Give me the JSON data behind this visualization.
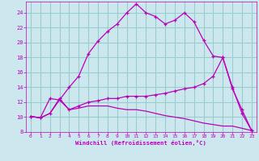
{
  "xlabel": "Windchill (Refroidissement éolien,°C)",
  "bg_color": "#cce8ee",
  "line_color": "#bb00bb",
  "grid_color": "#99cccc",
  "xlim": [
    -0.5,
    23.5
  ],
  "ylim": [
    8,
    25.5
  ],
  "xticks": [
    0,
    1,
    2,
    3,
    4,
    5,
    6,
    7,
    8,
    9,
    10,
    11,
    12,
    13,
    14,
    15,
    16,
    17,
    18,
    19,
    20,
    21,
    22,
    23
  ],
  "yticks": [
    8,
    10,
    12,
    14,
    16,
    18,
    20,
    22,
    24
  ],
  "line1_x": [
    0,
    1,
    2,
    3,
    4,
    5,
    6,
    7,
    8,
    9,
    10,
    11,
    12,
    13,
    14,
    15,
    16,
    17,
    18,
    19,
    20,
    21,
    22,
    23
  ],
  "line1_y": [
    10.1,
    9.9,
    12.5,
    12.3,
    14.0,
    15.5,
    18.5,
    20.2,
    21.5,
    22.5,
    24.0,
    25.2,
    24.0,
    23.5,
    22.5,
    23.0,
    24.0,
    22.8,
    20.3,
    18.2,
    18.0,
    13.8,
    11.0,
    8.2
  ],
  "line2_x": [
    0,
    1,
    2,
    3,
    4,
    5,
    6,
    7,
    8,
    9,
    10,
    11,
    12,
    13,
    14,
    15,
    16,
    17,
    18,
    19,
    20,
    21,
    22,
    23
  ],
  "line2_y": [
    10.1,
    9.9,
    10.5,
    12.5,
    11.0,
    11.5,
    12.0,
    12.2,
    12.5,
    12.5,
    12.8,
    12.8,
    12.8,
    13.0,
    13.2,
    13.5,
    13.8,
    14.0,
    14.5,
    15.5,
    18.0,
    14.0,
    10.5,
    8.2
  ],
  "line3_x": [
    0,
    1,
    2,
    3,
    4,
    5,
    6,
    7,
    8,
    9,
    10,
    11,
    12,
    13,
    14,
    15,
    16,
    17,
    18,
    19,
    20,
    21,
    22,
    23
  ],
  "line3_y": [
    10.1,
    9.9,
    10.5,
    12.3,
    11.0,
    11.2,
    11.5,
    11.5,
    11.5,
    11.2,
    11.0,
    11.0,
    10.8,
    10.5,
    10.2,
    10.0,
    9.8,
    9.5,
    9.2,
    9.0,
    8.8,
    8.8,
    8.5,
    8.2
  ]
}
